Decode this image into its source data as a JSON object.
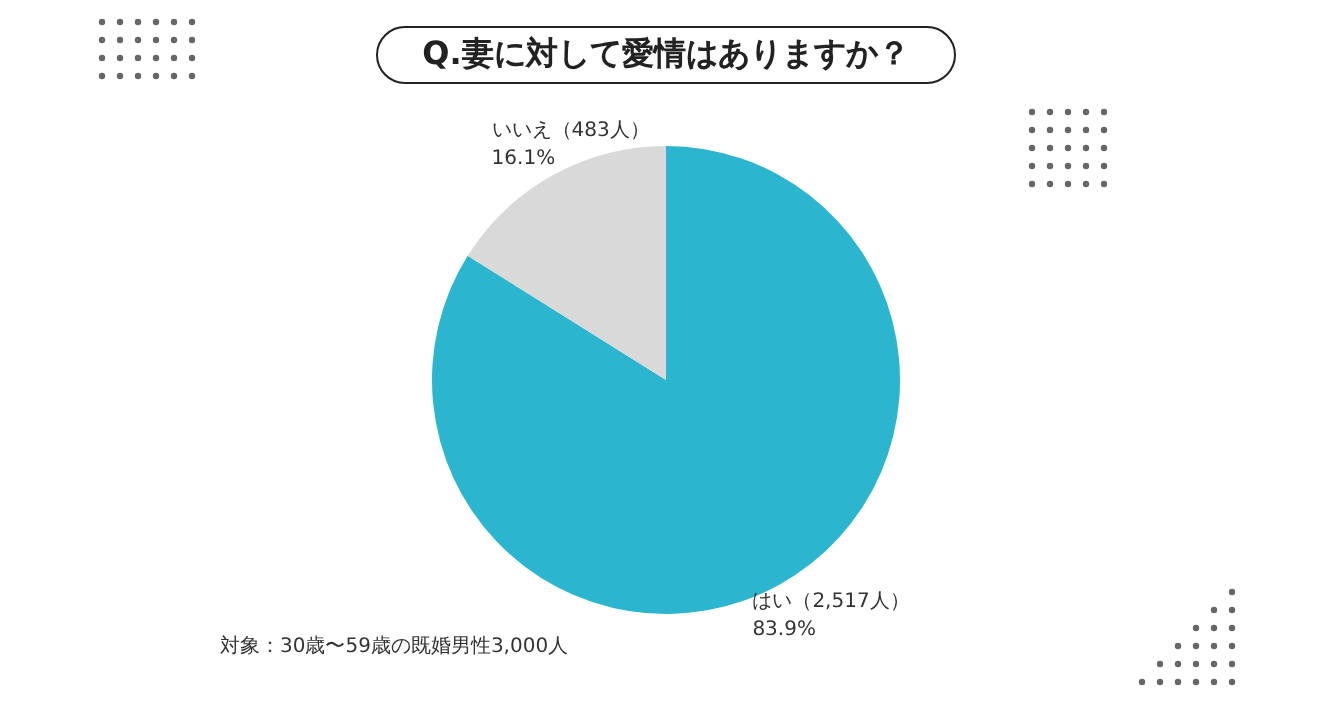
{
  "chart_data": {
    "type": "pie",
    "title": "Q.妻に対して愛情はありますか？",
    "categories": [
      "はい",
      "いいえ"
    ],
    "values": [
      2517,
      483
    ],
    "colors": [
      "#2bb5cf",
      "#d9d9d9"
    ],
    "value_labels": [
      "（2,517人）\n83.9%",
      "（483人）\n16.1%"
    ],
    "annotations": [
      "対象：30歳〜59歳の既婚男性3,000人"
    ]
  }
}
